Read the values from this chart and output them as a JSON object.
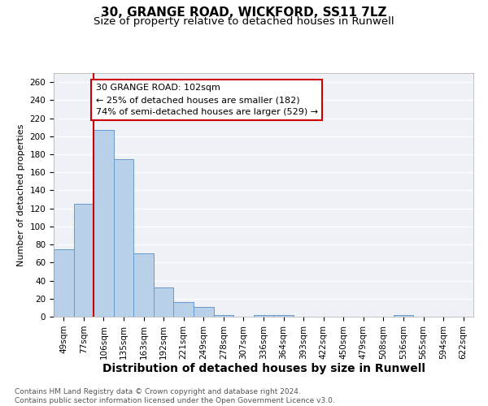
{
  "title": "30, GRANGE ROAD, WICKFORD, SS11 7LZ",
  "subtitle": "Size of property relative to detached houses in Runwell",
  "xlabel": "Distribution of detached houses by size in Runwell",
  "ylabel": "Number of detached properties",
  "categories": [
    "49sqm",
    "77sqm",
    "106sqm",
    "135sqm",
    "163sqm",
    "192sqm",
    "221sqm",
    "249sqm",
    "278sqm",
    "307sqm",
    "336sqm",
    "364sqm",
    "393sqm",
    "422sqm",
    "450sqm",
    "479sqm",
    "508sqm",
    "536sqm",
    "565sqm",
    "594sqm",
    "622sqm"
  ],
  "values": [
    75,
    125,
    207,
    175,
    70,
    32,
    16,
    11,
    2,
    0,
    2,
    2,
    0,
    0,
    0,
    0,
    0,
    2,
    0,
    0,
    0
  ],
  "bar_color": "#b8d0e8",
  "bar_edgecolor": "#6699cc",
  "vline_x": 1.5,
  "vline_color": "#cc0000",
  "annotation_text": "30 GRANGE ROAD: 102sqm\n← 25% of detached houses are smaller (182)\n74% of semi-detached houses are larger (529) →",
  "annotation_box_color": "white",
  "annotation_box_edgecolor": "#cc0000",
  "ylim": [
    0,
    270
  ],
  "yticks": [
    0,
    20,
    40,
    60,
    80,
    100,
    120,
    140,
    160,
    180,
    200,
    220,
    240,
    260
  ],
  "footer_text": "Contains HM Land Registry data © Crown copyright and database right 2024.\nContains public sector information licensed under the Open Government Licence v3.0.",
  "title_fontsize": 11,
  "subtitle_fontsize": 9.5,
  "xlabel_fontsize": 10,
  "ylabel_fontsize": 8,
  "tick_fontsize": 7.5,
  "footer_fontsize": 6.5,
  "annotation_fontsize": 8,
  "background_color": "#eef2f7"
}
